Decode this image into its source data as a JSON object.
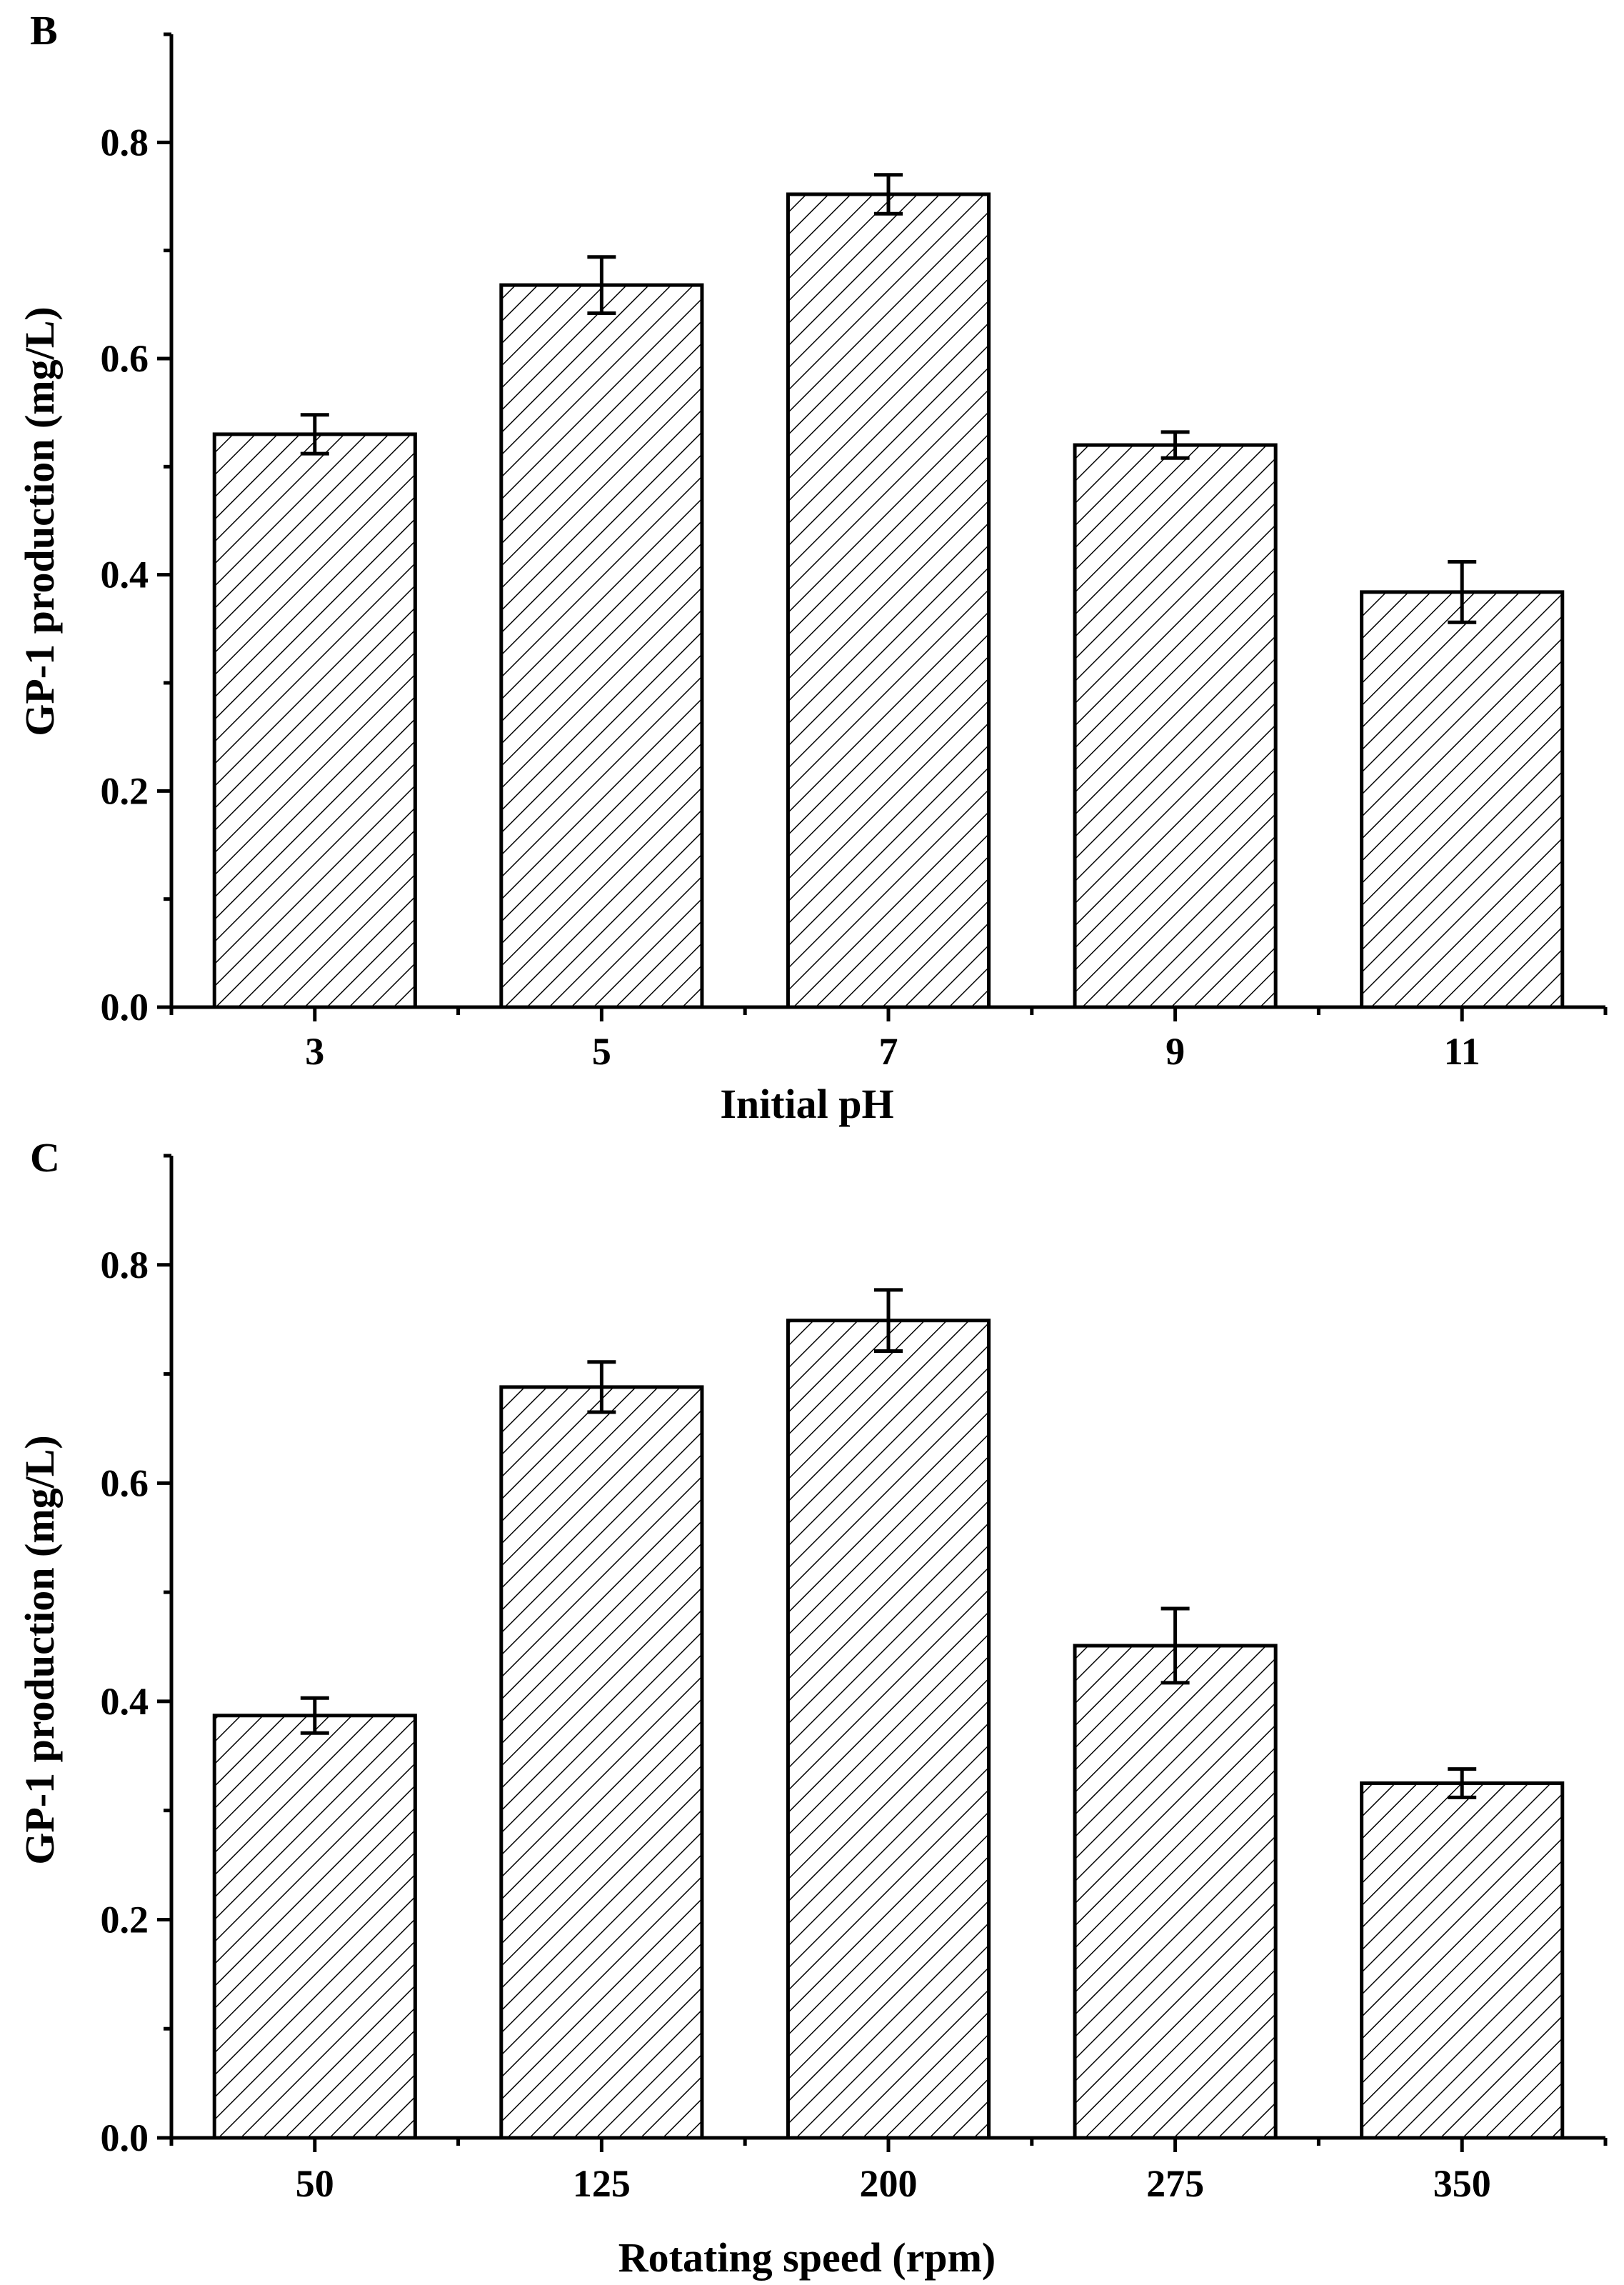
{
  "figure": {
    "background": "#ffffff",
    "ink": "#000000"
  },
  "chart_data": [
    {
      "type": "bar",
      "panel_label": "B",
      "title": "",
      "xlabel": "Initial pH",
      "ylabel": "GP-1 production (mg/L)",
      "categories": [
        "3",
        "5",
        "7",
        "9",
        "11"
      ],
      "series": [
        {
          "name": "GP-1 production",
          "values": [
            0.53,
            0.668,
            0.752,
            0.52,
            0.384
          ],
          "errors": [
            0.018,
            0.026,
            0.018,
            0.012,
            0.028
          ]
        }
      ],
      "ylim": [
        0,
        0.9
      ],
      "yticks": [
        "0.0",
        "0.2",
        "0.4",
        "0.6",
        "0.8"
      ],
      "bar_fill": "diagonal hatch",
      "grid": false,
      "legend": "none"
    },
    {
      "type": "bar",
      "panel_label": "C",
      "title": "",
      "xlabel": "Rotating speed (rpm)",
      "ylabel": "GP-1 production (mg/L)",
      "categories": [
        "50",
        "125",
        "200",
        "275",
        "350"
      ],
      "series": [
        {
          "name": "GP-1 production",
          "values": [
            0.387,
            0.688,
            0.749,
            0.451,
            0.325
          ],
          "errors": [
            0.016,
            0.023,
            0.028,
            0.034,
            0.013
          ]
        }
      ],
      "ylim": [
        0,
        0.9
      ],
      "yticks": [
        "0.0",
        "0.2",
        "0.4",
        "0.6",
        "0.8"
      ],
      "bar_fill": "diagonal hatch",
      "grid": false,
      "legend": "none"
    }
  ]
}
